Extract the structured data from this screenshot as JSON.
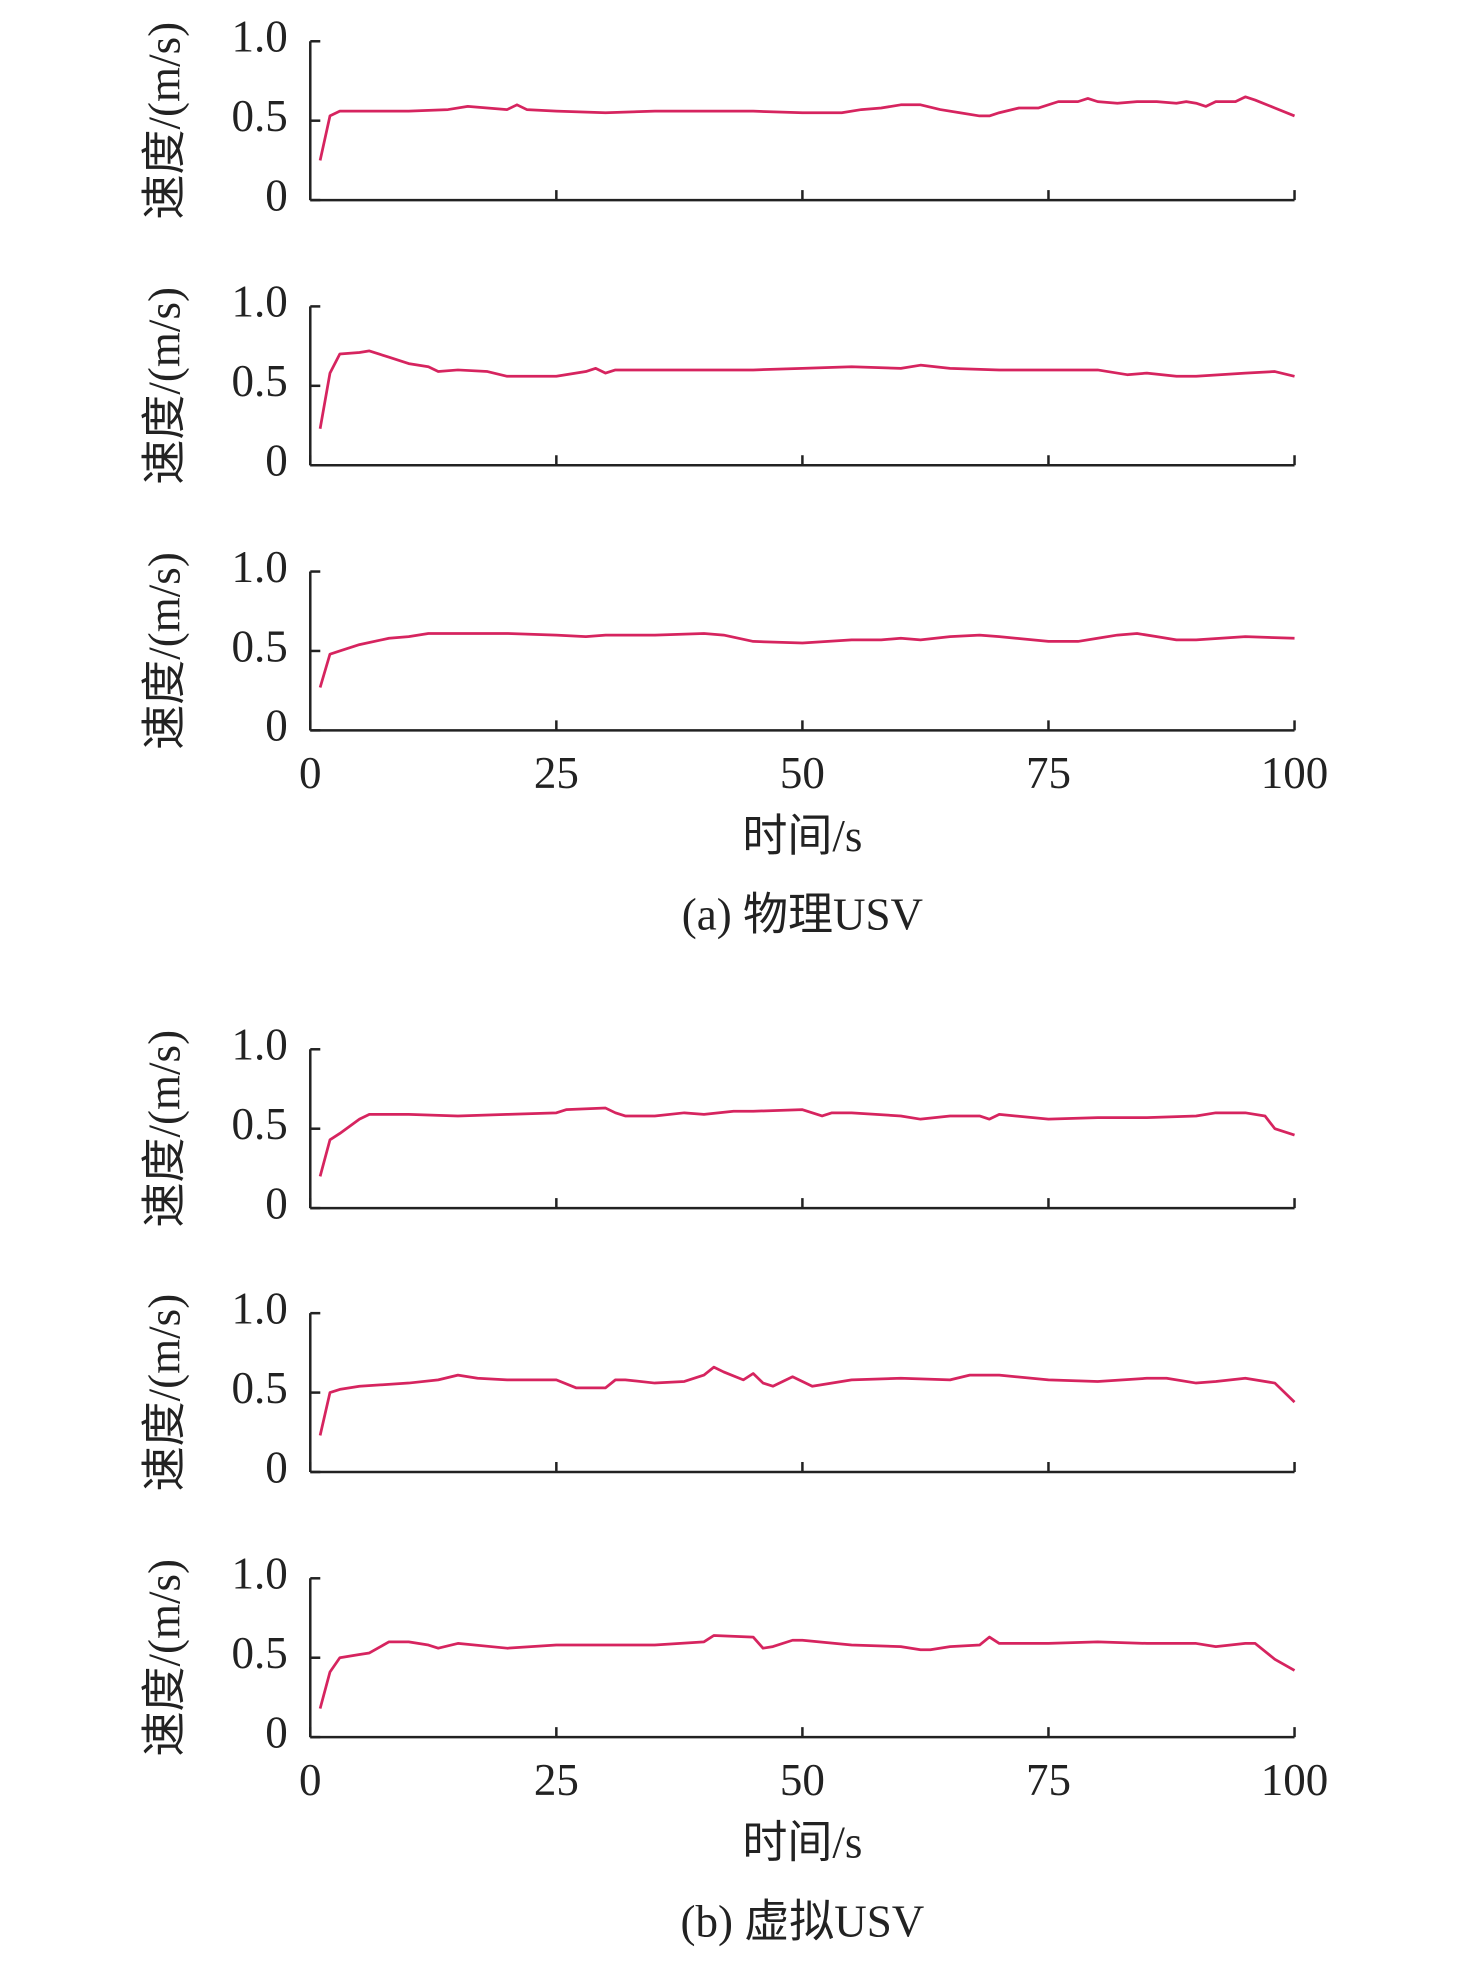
{
  "chart_data": [
    {
      "type": "line",
      "ylabel": "速度/(m/s)",
      "color": "#d6245f",
      "xlim": [
        0,
        100
      ],
      "ylim": [
        0,
        1
      ],
      "xticks": [
        0,
        25,
        50,
        75,
        100
      ],
      "yticks": [
        0,
        0.5,
        {
          "value": 1,
          "label": "1.0"
        }
      ],
      "x": [
        1,
        2,
        3,
        5,
        10,
        14,
        16,
        18,
        20,
        21,
        22,
        25,
        30,
        35,
        40,
        45,
        50,
        54,
        56,
        58,
        60,
        62,
        64,
        66,
        68,
        69,
        70,
        72,
        74,
        76,
        78,
        79,
        80,
        82,
        84,
        86,
        88,
        89,
        90,
        91,
        92,
        94,
        95,
        96,
        98,
        100
      ],
      "values": [
        0.25,
        0.53,
        0.56,
        0.56,
        0.56,
        0.57,
        0.59,
        0.58,
        0.57,
        0.6,
        0.57,
        0.56,
        0.55,
        0.56,
        0.56,
        0.56,
        0.55,
        0.55,
        0.57,
        0.58,
        0.6,
        0.6,
        0.57,
        0.55,
        0.53,
        0.53,
        0.55,
        0.58,
        0.58,
        0.62,
        0.62,
        0.64,
        0.62,
        0.61,
        0.62,
        0.62,
        0.61,
        0.62,
        0.61,
        0.59,
        0.62,
        0.62,
        0.65,
        0.63,
        0.58,
        0.53
      ]
    },
    {
      "type": "line",
      "ylabel": "速度/(m/s)",
      "color": "#d6245f",
      "xlim": [
        0,
        100
      ],
      "ylim": [
        0,
        1
      ],
      "xticks": [
        0,
        25,
        50,
        75,
        100
      ],
      "yticks": [
        0,
        0.5,
        {
          "value": 1,
          "label": "1.0"
        }
      ],
      "x": [
        1,
        2,
        3,
        5,
        6,
        8,
        10,
        12,
        13,
        15,
        18,
        20,
        25,
        28,
        29,
        30,
        31,
        35,
        40,
        45,
        50,
        55,
        60,
        62,
        65,
        70,
        75,
        80,
        83,
        85,
        88,
        90,
        95,
        98,
        100
      ],
      "values": [
        0.23,
        0.58,
        0.7,
        0.71,
        0.72,
        0.68,
        0.64,
        0.62,
        0.59,
        0.6,
        0.59,
        0.56,
        0.56,
        0.59,
        0.61,
        0.58,
        0.6,
        0.6,
        0.6,
        0.6,
        0.61,
        0.62,
        0.61,
        0.63,
        0.61,
        0.6,
        0.6,
        0.6,
        0.57,
        0.58,
        0.56,
        0.56,
        0.58,
        0.59,
        0.56
      ]
    },
    {
      "type": "line",
      "ylabel": "速度/(m/s)",
      "color": "#d6245f",
      "xlim": [
        0,
        100
      ],
      "ylim": [
        0,
        1
      ],
      "xticks": [
        0,
        25,
        50,
        75,
        100
      ],
      "yticks": [
        0,
        0.5,
        {
          "value": 1,
          "label": "1.0"
        }
      ],
      "xlabel": "时间/s",
      "caption": "(a) 物理USV",
      "x": [
        1,
        2,
        3,
        5,
        8,
        10,
        12,
        15,
        20,
        25,
        28,
        30,
        35,
        40,
        42,
        45,
        50,
        55,
        58,
        60,
        62,
        65,
        68,
        70,
        75,
        78,
        80,
        82,
        84,
        86,
        88,
        90,
        95,
        100
      ],
      "values": [
        0.27,
        0.48,
        0.5,
        0.54,
        0.58,
        0.59,
        0.61,
        0.61,
        0.61,
        0.6,
        0.59,
        0.6,
        0.6,
        0.61,
        0.6,
        0.56,
        0.55,
        0.57,
        0.57,
        0.58,
        0.57,
        0.59,
        0.6,
        0.59,
        0.56,
        0.56,
        0.58,
        0.6,
        0.61,
        0.59,
        0.57,
        0.57,
        0.59,
        0.58
      ]
    },
    {
      "type": "line",
      "ylabel": "速度/(m/s)",
      "color": "#d6245f",
      "xlim": [
        0,
        100
      ],
      "ylim": [
        0,
        1
      ],
      "xticks": [
        0,
        25,
        50,
        75,
        100
      ],
      "yticks": [
        0,
        0.5,
        {
          "value": 1,
          "label": "1.0"
        }
      ],
      "x": [
        1,
        2,
        3,
        5,
        6,
        10,
        15,
        20,
        25,
        26,
        30,
        31,
        32,
        35,
        38,
        40,
        43,
        45,
        50,
        51,
        52,
        53,
        55,
        60,
        62,
        65,
        68,
        69,
        70,
        75,
        80,
        85,
        90,
        92,
        95,
        97,
        98,
        100
      ],
      "values": [
        0.2,
        0.43,
        0.47,
        0.56,
        0.59,
        0.59,
        0.58,
        0.59,
        0.6,
        0.62,
        0.63,
        0.6,
        0.58,
        0.58,
        0.6,
        0.59,
        0.61,
        0.61,
        0.62,
        0.6,
        0.58,
        0.6,
        0.6,
        0.58,
        0.56,
        0.58,
        0.58,
        0.56,
        0.59,
        0.56,
        0.57,
        0.57,
        0.58,
        0.6,
        0.6,
        0.58,
        0.5,
        0.46
      ]
    },
    {
      "type": "line",
      "ylabel": "速度/(m/s)",
      "color": "#d6245f",
      "xlim": [
        0,
        100
      ],
      "ylim": [
        0,
        1
      ],
      "xticks": [
        0,
        25,
        50,
        75,
        100
      ],
      "yticks": [
        0,
        0.5,
        {
          "value": 1,
          "label": "1.0"
        }
      ],
      "x": [
        1,
        2,
        3,
        5,
        10,
        13,
        15,
        17,
        20,
        25,
        27,
        30,
        31,
        32,
        35,
        38,
        40,
        41,
        42,
        44,
        45,
        46,
        47,
        49,
        50,
        51,
        55,
        60,
        65,
        67,
        70,
        75,
        80,
        85,
        87,
        90,
        92,
        95,
        98,
        100
      ],
      "values": [
        0.23,
        0.5,
        0.52,
        0.54,
        0.56,
        0.58,
        0.61,
        0.59,
        0.58,
        0.58,
        0.53,
        0.53,
        0.58,
        0.58,
        0.56,
        0.57,
        0.61,
        0.66,
        0.63,
        0.58,
        0.62,
        0.56,
        0.54,
        0.6,
        0.57,
        0.54,
        0.58,
        0.59,
        0.58,
        0.61,
        0.61,
        0.58,
        0.57,
        0.59,
        0.59,
        0.56,
        0.57,
        0.59,
        0.56,
        0.44
      ]
    },
    {
      "type": "line",
      "ylabel": "速度/(m/s)",
      "color": "#d6245f",
      "xlim": [
        0,
        100
      ],
      "ylim": [
        0,
        1
      ],
      "xticks": [
        0,
        25,
        50,
        75,
        100
      ],
      "yticks": [
        0,
        0.5,
        {
          "value": 1,
          "label": "1.0"
        }
      ],
      "xlabel": "时间/s",
      "caption": "(b) 虚拟USV",
      "x": [
        1,
        2,
        3,
        5,
        6,
        8,
        10,
        12,
        13,
        15,
        20,
        25,
        30,
        35,
        40,
        41,
        45,
        46,
        47,
        49,
        50,
        55,
        60,
        62,
        63,
        65,
        68,
        69,
        70,
        75,
        80,
        85,
        90,
        92,
        95,
        96,
        98,
        100
      ],
      "values": [
        0.18,
        0.41,
        0.5,
        0.52,
        0.53,
        0.6,
        0.6,
        0.58,
        0.56,
        0.59,
        0.56,
        0.58,
        0.58,
        0.58,
        0.6,
        0.64,
        0.63,
        0.56,
        0.57,
        0.61,
        0.61,
        0.58,
        0.57,
        0.55,
        0.55,
        0.57,
        0.58,
        0.63,
        0.59,
        0.59,
        0.6,
        0.59,
        0.59,
        0.57,
        0.59,
        0.59,
        0.49,
        0.42
      ]
    }
  ]
}
